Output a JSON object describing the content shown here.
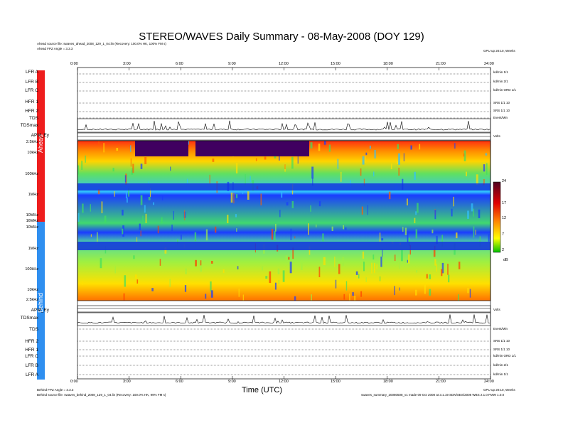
{
  "title": "STEREO/WAVES Daily Summary - 08-May-2008 (DOY 129)",
  "header_left": [
    "Ahead source file: swaves_ahead_2008_129_1_04.lin (Recovery: 100.0% HK, 100% FM s)",
    "Ahead FPZ Angle = 3.3.3"
  ],
  "header_right": "GPU  up 20:10, Weeks",
  "footer_left": [
    "Behind FPZ Angle = 3.3.3",
    "Behind source file: swaves_behind_2008_129_1_04.lin (Recovery: 100.0% HK, 99% FM s)"
  ],
  "footer_right": [
    "GPU  up 20:10, Weeks",
    "swaves_summary_20080508_v1 made 09 Oct 2008 at 3.1.19 SDN/SES/2008 WBS 2.1.0 FMW 1.0.0"
  ],
  "spacecraft": {
    "ahead": "Ahead",
    "behind": "Behind"
  },
  "x_axis": {
    "label": "Time (UTC)",
    "ticks": [
      "0:00",
      "3:00",
      "6:00",
      "9:00",
      "12:00",
      "15:00",
      "18:00",
      "21:00",
      "24:00"
    ]
  },
  "ahead_panels": [
    {
      "label": "LFR A",
      "right": "kd/min 1/1"
    },
    {
      "label": "LFR B",
      "right": "kd/min 2/1"
    },
    {
      "label": "LFR C",
      "right": "kd/min ORD 1/1"
    },
    {
      "label": "HFR 1",
      "right": "SRS 1/1 10"
    },
    {
      "label": "HFR 2",
      "right": "SRS 1/1 10"
    },
    {
      "label": "TDS",
      "right": "Event/Min"
    }
  ],
  "behind_panels": [
    {
      "label": "TDS",
      "right": "Event/Min"
    },
    {
      "label": "HFR 2",
      "right": "SRS 1/1 10"
    },
    {
      "label": "HFR 1",
      "right": "SRS 1/1 10"
    },
    {
      "label": "LFR C",
      "right": "kd/min ORD 1/1"
    },
    {
      "label": "LFR B",
      "right": "kd/min 2/1"
    },
    {
      "label": "LFR A",
      "right": "kd/min 1/1"
    }
  ],
  "ahead_traces": {
    "tdsmax": "TDSmax",
    "apm": "APM_Ey",
    "apm_unit": "Volts"
  },
  "behind_traces": {
    "tdsmax": "TDSmax",
    "apm": "APM_Ey",
    "apm_unit": "Volts"
  },
  "spectrogram": {
    "freq_ticks_left": [
      "2.5kHz",
      "10kHz",
      "100kHz",
      "1MHz",
      "10MHz",
      "16MHz",
      "10MHz",
      "1MHz",
      "100kHz",
      "10kHz",
      "2.5kHz"
    ],
    "colorbar": {
      "ticks": [
        "24",
        "17",
        "12",
        "7",
        "2"
      ],
      "unit": "dB"
    }
  },
  "colors": {
    "ahead": "#ee1d1d",
    "behind": "#2f8ff0"
  }
}
